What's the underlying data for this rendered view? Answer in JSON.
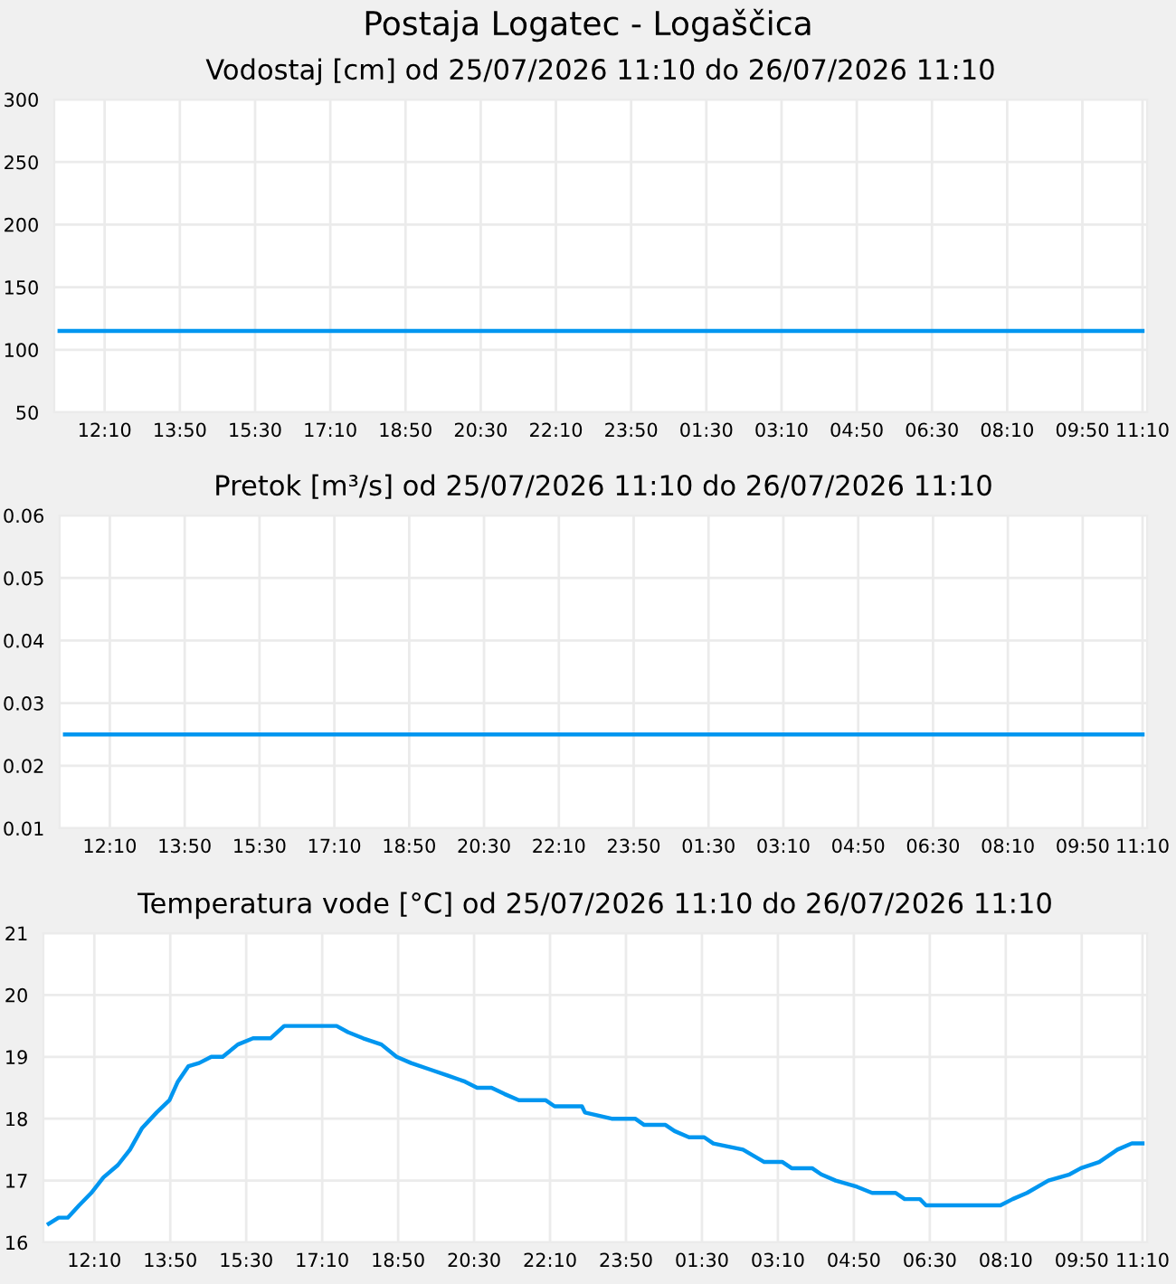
{
  "chart_data": [
    {
      "type": "line",
      "title": "Postaja Logatec - Logaščica",
      "subtitle": "Vodostaj [cm] od 25/07/2026 11:10 do 26/07/2026 11:10",
      "x": [
        "2026-07-25T11:10",
        "2026-07-26T11:10"
      ],
      "series": [
        {
          "color": "#0096f0",
          "values": [
            115,
            115
          ]
        }
      ],
      "xlim": [
        "2026-07-25T11:03",
        "2026-07-26T11:16"
      ],
      "xticks": [
        {
          "value": "2026-07-25T12:10",
          "label": "12:10"
        },
        {
          "value": "2026-07-25T13:50",
          "label": "13:50"
        },
        {
          "value": "2026-07-25T15:30",
          "label": "15:30"
        },
        {
          "value": "2026-07-25T17:10",
          "label": "17:10"
        },
        {
          "value": "2026-07-25T18:50",
          "label": "18:50"
        },
        {
          "value": "2026-07-25T20:30",
          "label": "20:30"
        },
        {
          "value": "2026-07-25T22:10",
          "label": "22:10"
        },
        {
          "value": "2026-07-25T23:50",
          "label": "23:50"
        },
        {
          "value": "2026-07-26T01:30",
          "label": "01:30"
        },
        {
          "value": "2026-07-26T03:10",
          "label": "03:10"
        },
        {
          "value": "2026-07-26T04:50",
          "label": "04:50"
        },
        {
          "value": "2026-07-26T06:30",
          "label": "06:30"
        },
        {
          "value": "2026-07-26T08:10",
          "label": "08:10"
        },
        {
          "value": "2026-07-26T09:50",
          "label": "09:50"
        },
        {
          "value": "2026-07-26T11:10",
          "label": "11:10"
        }
      ],
      "ylim": [
        50,
        300
      ],
      "yticks": [
        50,
        100,
        150,
        200,
        250,
        300
      ],
      "grid": true,
      "marker": "none",
      "line_style": "solid"
    },
    {
      "type": "line",
      "title": "Pretok [m³/s] od 25/07/2026 11:10 do 26/07/2026 11:10",
      "x": [
        "2026-07-25T11:10",
        "2026-07-26T11:10"
      ],
      "series": [
        {
          "color": "#0096f0",
          "values": [
            0.025,
            0.025
          ]
        }
      ],
      "xlim": [
        "2026-07-25T11:03",
        "2026-07-26T11:16"
      ],
      "xticks": [
        {
          "value": "2026-07-25T12:10",
          "label": "12:10"
        },
        {
          "value": "2026-07-25T13:50",
          "label": "13:50"
        },
        {
          "value": "2026-07-25T15:30",
          "label": "15:30"
        },
        {
          "value": "2026-07-25T17:10",
          "label": "17:10"
        },
        {
          "value": "2026-07-25T18:50",
          "label": "18:50"
        },
        {
          "value": "2026-07-25T20:30",
          "label": "20:30"
        },
        {
          "value": "2026-07-25T22:10",
          "label": "22:10"
        },
        {
          "value": "2026-07-25T23:50",
          "label": "23:50"
        },
        {
          "value": "2026-07-26T01:30",
          "label": "01:30"
        },
        {
          "value": "2026-07-26T03:10",
          "label": "03:10"
        },
        {
          "value": "2026-07-26T04:50",
          "label": "04:50"
        },
        {
          "value": "2026-07-26T06:30",
          "label": "06:30"
        },
        {
          "value": "2026-07-26T08:10",
          "label": "08:10"
        },
        {
          "value": "2026-07-26T09:50",
          "label": "09:50"
        },
        {
          "value": "2026-07-26T11:10",
          "label": "11:10"
        }
      ],
      "ylim": [
        0.01,
        0.06
      ],
      "yticks": [
        0.01,
        0.02,
        0.03,
        0.04,
        0.05,
        0.06
      ],
      "grid": true,
      "marker": "none",
      "line_style": "solid"
    },
    {
      "type": "line",
      "title": "Temperatura vode [°C] od 25/07/2026 11:10 do 26/07/2026 11:10",
      "x": [
        "2026-07-25T11:10",
        "2026-07-25T11:23",
        "2026-07-25T11:35",
        "2026-07-25T11:50",
        "2026-07-25T12:06",
        "2026-07-25T12:22",
        "2026-07-25T12:41",
        "2026-07-25T12:57",
        "2026-07-25T13:13",
        "2026-07-25T13:32",
        "2026-07-25T13:49",
        "2026-07-25T14:00",
        "2026-07-25T14:14",
        "2026-07-25T14:28",
        "2026-07-25T14:44",
        "2026-07-25T14:59",
        "2026-07-25T15:19",
        "2026-07-25T15:39",
        "2026-07-25T16:02",
        "2026-07-25T16:20",
        "2026-07-25T17:29",
        "2026-07-25T17:44",
        "2026-07-25T18:04",
        "2026-07-25T18:28",
        "2026-07-25T18:48",
        "2026-07-25T19:07",
        "2026-07-25T19:31",
        "2026-07-25T19:55",
        "2026-07-25T20:18",
        "2026-07-25T20:34",
        "2026-07-25T20:53",
        "2026-07-25T21:10",
        "2026-07-25T21:29",
        "2026-07-25T22:04",
        "2026-07-25T22:16",
        "2026-07-25T22:52",
        "2026-07-25T22:56",
        "2026-07-25T23:31",
        "2026-07-26T00:02",
        "2026-07-26T00:14",
        "2026-07-26T00:42",
        "2026-07-26T00:54",
        "2026-07-26T01:13",
        "2026-07-26T01:33",
        "2026-07-26T01:45",
        "2026-07-26T02:24",
        "2026-07-26T02:52",
        "2026-07-26T03:16",
        "2026-07-26T03:28",
        "2026-07-26T03:55",
        "2026-07-26T04:07",
        "2026-07-26T04:26",
        "2026-07-26T04:54",
        "2026-07-26T05:14",
        "2026-07-26T05:45",
        "2026-07-26T05:57",
        "2026-07-26T06:17",
        "2026-07-26T06:25",
        "2026-07-26T08:03",
        "2026-07-26T08:19",
        "2026-07-26T08:38",
        "2026-07-26T09:06",
        "2026-07-26T09:34",
        "2026-07-26T09:49",
        "2026-07-26T10:13",
        "2026-07-26T10:37",
        "2026-07-26T10:56",
        "2026-07-26T11:10"
      ],
      "series": [
        {
          "color": "#0096f0",
          "values": [
            16.3,
            16.4,
            16.4,
            16.6,
            16.8,
            17.05,
            17.25,
            17.5,
            17.85,
            18.1,
            18.3,
            18.6,
            18.85,
            18.9,
            19.0,
            19.0,
            19.2,
            19.3,
            19.3,
            19.5,
            19.5,
            19.4,
            19.3,
            19.2,
            19.0,
            18.9,
            18.8,
            18.7,
            18.6,
            18.5,
            18.5,
            18.4,
            18.3,
            18.3,
            18.2,
            18.2,
            18.1,
            18.0,
            18.0,
            17.9,
            17.9,
            17.8,
            17.7,
            17.7,
            17.6,
            17.5,
            17.3,
            17.3,
            17.2,
            17.2,
            17.1,
            17.0,
            16.9,
            16.8,
            16.8,
            16.7,
            16.7,
            16.6,
            16.6,
            16.7,
            16.8,
            17.0,
            17.1,
            17.2,
            17.3,
            17.5,
            17.6,
            17.6
          ]
        }
      ],
      "xlim": [
        "2026-07-25T11:03",
        "2026-07-26T11:16"
      ],
      "xticks": [
        {
          "value": "2026-07-25T12:10",
          "label": "12:10"
        },
        {
          "value": "2026-07-25T13:50",
          "label": "13:50"
        },
        {
          "value": "2026-07-25T15:30",
          "label": "15:30"
        },
        {
          "value": "2026-07-25T17:10",
          "label": "17:10"
        },
        {
          "value": "2026-07-25T18:50",
          "label": "18:50"
        },
        {
          "value": "2026-07-25T20:30",
          "label": "20:30"
        },
        {
          "value": "2026-07-25T22:10",
          "label": "22:10"
        },
        {
          "value": "2026-07-25T23:50",
          "label": "23:50"
        },
        {
          "value": "2026-07-26T01:30",
          "label": "01:30"
        },
        {
          "value": "2026-07-26T03:10",
          "label": "03:10"
        },
        {
          "value": "2026-07-26T04:50",
          "label": "04:50"
        },
        {
          "value": "2026-07-26T06:30",
          "label": "06:30"
        },
        {
          "value": "2026-07-26T08:10",
          "label": "08:10"
        },
        {
          "value": "2026-07-26T09:50",
          "label": "09:50"
        },
        {
          "value": "2026-07-26T11:10",
          "label": "11:10"
        }
      ],
      "ylim": [
        16,
        21
      ],
      "yticks": [
        16,
        17,
        18,
        19,
        20,
        21
      ],
      "grid": true,
      "marker": "none",
      "line_style": "solid"
    }
  ]
}
